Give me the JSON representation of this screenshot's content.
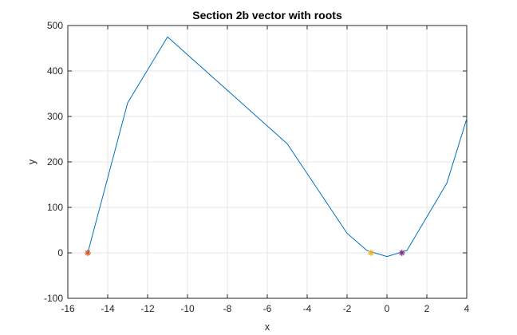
{
  "chart_data": {
    "type": "line",
    "title": "Section 2b vector with roots",
    "xlabel": "x",
    "ylabel": "y",
    "xlim": [
      -16,
      4
    ],
    "ylim": [
      -100,
      500
    ],
    "xticks": [
      -16,
      -14,
      -12,
      -10,
      -8,
      -6,
      -4,
      -2,
      0,
      2,
      4
    ],
    "yticks": [
      -100,
      0,
      100,
      200,
      300,
      400,
      500
    ],
    "xtick_labels": [
      "-16",
      "-14",
      "-12",
      "-10",
      "-8",
      "-6",
      "-4",
      "-2",
      "0",
      "2",
      "4"
    ],
    "ytick_labels": [
      "-100",
      "0",
      "100",
      "200",
      "300",
      "400",
      "500"
    ],
    "grid": true,
    "series": [
      {
        "color": "#0072BD",
        "x": [
          -15,
          -13,
          -11,
          -5,
          -2,
          -1,
          0,
          1,
          3,
          4
        ],
        "y": [
          0,
          330,
          475,
          240,
          43,
          5,
          -8,
          5,
          153,
          295
        ]
      }
    ],
    "markers": [
      {
        "x": -15,
        "y": 0,
        "color": "#D95319",
        "symbol": "*"
      },
      {
        "x": -0.8,
        "y": 0,
        "color": "#EDB120",
        "symbol": "*"
      },
      {
        "x": 0.75,
        "y": 0,
        "color": "#7E2F8E",
        "symbol": "*"
      }
    ]
  }
}
